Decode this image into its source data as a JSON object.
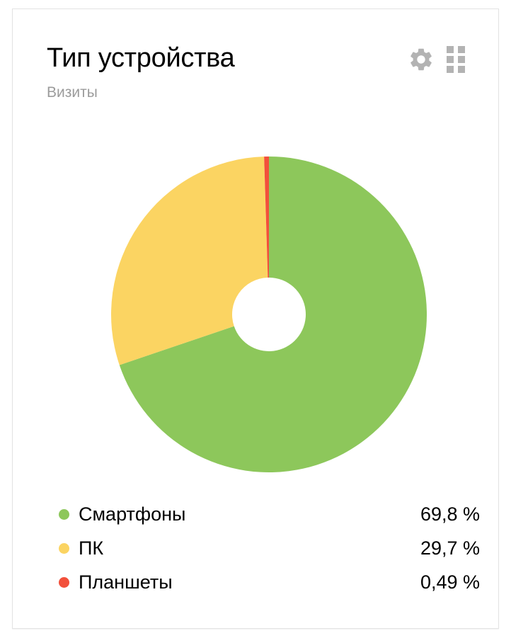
{
  "widget": {
    "title": "Тип устройства",
    "subtitle": "Визиты"
  },
  "toolbar": {
    "settings_icon": "gear-icon",
    "widgets_icon": "grid-icon"
  },
  "colors": {
    "card_border": "#e3e3e3",
    "icon_gray": "#b3b3b3",
    "subtitle_gray": "#9b9b9b",
    "green": "#8dc75b",
    "yellow": "#fbd462",
    "red": "#f2503b"
  },
  "chart_data": {
    "type": "pie",
    "subtype": "donut",
    "title": "Тип устройства",
    "metric": "Визиты",
    "start_angle_deg": 0,
    "direction": "clockwise",
    "legend_position": "bottom",
    "segments": [
      {
        "label": "Смартфоны",
        "value_pct": 69.8,
        "display": "69,8 %",
        "color": "#8dc75b"
      },
      {
        "label": "ПК",
        "value_pct": 29.7,
        "display": "29,7 %",
        "color": "#fbd462"
      },
      {
        "label": "Планшеты",
        "value_pct": 0.49,
        "display": "0,49 %",
        "color": "#f2503b"
      }
    ]
  }
}
